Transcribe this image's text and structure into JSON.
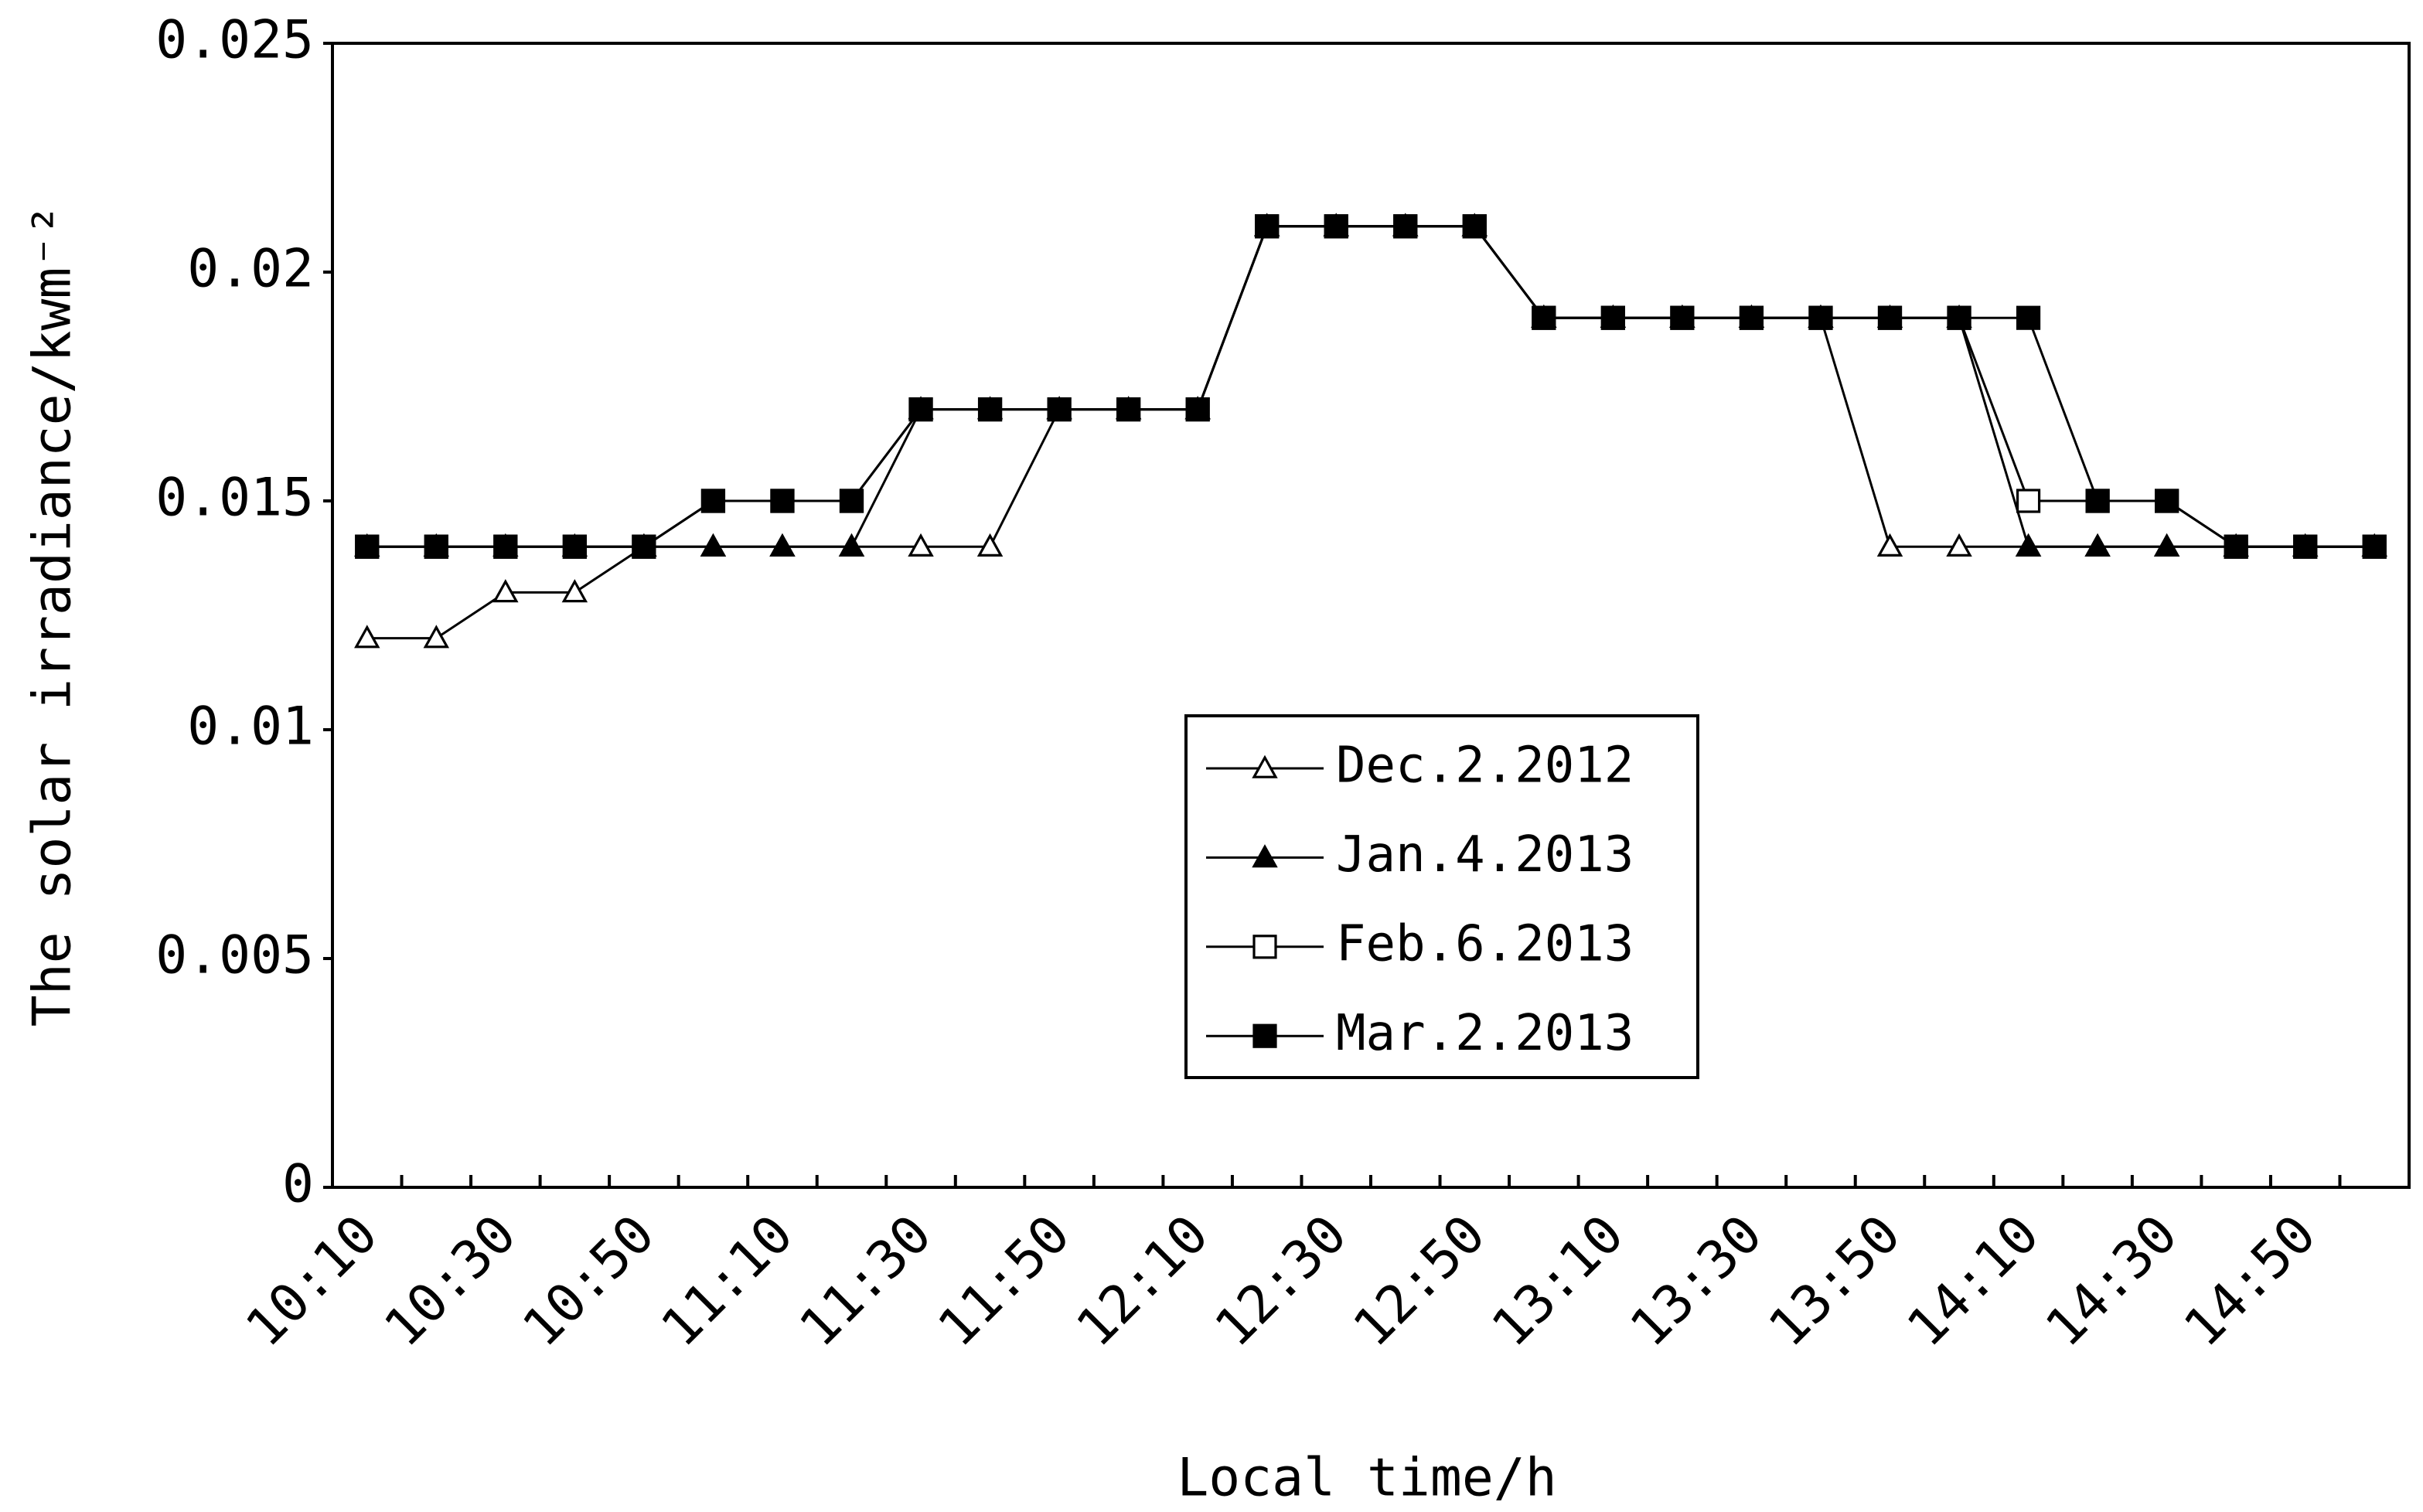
{
  "chart_data": {
    "type": "line",
    "xlabel": "Local time/h",
    "ylabel": "The solar irradiance/kwm⁻²",
    "categories": [
      "10:10",
      null,
      "10:30",
      null,
      "10:50",
      null,
      "11:10",
      null,
      "11:30",
      null,
      "11:50",
      null,
      "12:10",
      null,
      "12:30",
      null,
      "12:50",
      null,
      "13:10",
      null,
      "13:30",
      null,
      "13:50",
      null,
      "14:10",
      null,
      "14:30",
      null,
      "14:50",
      null
    ],
    "ylim": [
      0,
      0.025
    ],
    "yticks": [
      0,
      0.005,
      0.01,
      0.015,
      0.02,
      0.025
    ],
    "grid": false,
    "legend": "center",
    "series": [
      {
        "name": "Dec.2.2012",
        "color": "#000000",
        "marker": "triangle-open",
        "values": [
          0.012,
          0.012,
          0.013,
          0.013,
          0.014,
          0.014,
          0.014,
          0.014,
          0.014,
          0.014,
          0.017,
          0.017,
          0.017,
          0.021,
          0.021,
          0.021,
          0.021,
          0.019,
          0.019,
          0.019,
          0.019,
          0.019,
          0.014,
          0.014,
          0.014,
          0.014,
          0.014,
          0.014,
          0.014,
          0.014
        ]
      },
      {
        "name": "Jan.4.2013",
        "color": "#000000",
        "marker": "triangle-filled",
        "values": [
          0.014,
          0.014,
          0.014,
          0.014,
          0.014,
          0.014,
          0.014,
          0.014,
          0.017,
          0.017,
          0.017,
          0.017,
          0.017,
          0.021,
          0.021,
          0.021,
          0.021,
          0.019,
          0.019,
          0.019,
          0.019,
          0.019,
          0.019,
          0.019,
          0.014,
          0.014,
          0.014,
          0.014,
          0.014,
          0.014
        ]
      },
      {
        "name": "Feb.6.2013",
        "color": "#000000",
        "marker": "square-open",
        "values": [
          0.014,
          0.014,
          0.014,
          0.014,
          0.014,
          0.015,
          0.015,
          0.015,
          0.017,
          0.017,
          0.017,
          0.017,
          0.017,
          0.021,
          0.021,
          0.021,
          0.021,
          0.019,
          0.019,
          0.019,
          0.019,
          0.019,
          0.019,
          0.019,
          0.015,
          0.015,
          0.015,
          0.014,
          0.014,
          0.014
        ]
      },
      {
        "name": "Mar.2.2013",
        "color": "#000000",
        "marker": "square-filled",
        "values": [
          0.014,
          0.014,
          0.014,
          0.014,
          0.014,
          0.015,
          0.015,
          0.015,
          0.017,
          0.017,
          0.017,
          0.017,
          0.017,
          0.021,
          0.021,
          0.021,
          0.021,
          0.019,
          0.019,
          0.019,
          0.019,
          0.019,
          0.019,
          0.019,
          0.019,
          0.015,
          0.015,
          0.014,
          0.014,
          0.014
        ]
      }
    ]
  }
}
